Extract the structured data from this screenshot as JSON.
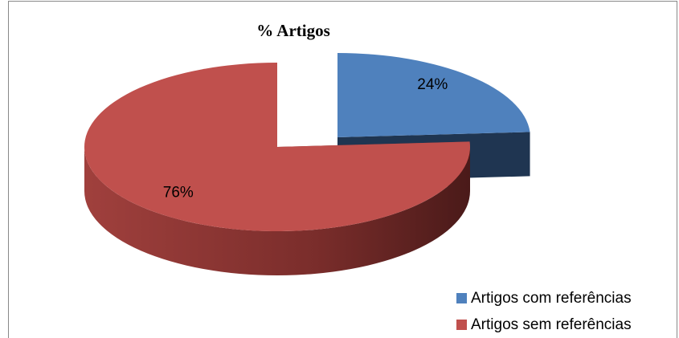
{
  "chart_data": {
    "type": "pie",
    "title": "% Artigos",
    "categories": [
      "Artigos com referências",
      "Artigos sem referências"
    ],
    "values": [
      24,
      76
    ],
    "value_labels": [
      "24%",
      "76%"
    ],
    "colors": [
      "#4f81bd",
      "#c0504d"
    ],
    "legend": "bottom-right"
  }
}
